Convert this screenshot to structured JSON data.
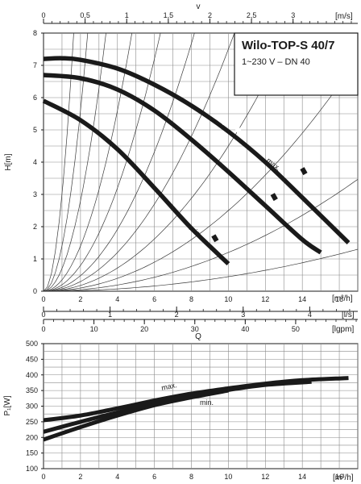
{
  "chart_data": [
    {
      "type": "line",
      "title": "Wilo-TOP-S 40/7",
      "subtitle": "1~230 V – DN 40",
      "ylabel": "H[m]",
      "xlabel": "[m³/h]",
      "xlim": [
        0,
        17
      ],
      "ylim": [
        0,
        8
      ],
      "x_ticks": [
        "0",
        "2",
        "4",
        "6",
        "8",
        "10",
        "12",
        "14",
        "16"
      ],
      "y_ticks": [
        "0",
        "1",
        "2",
        "3",
        "4",
        "5",
        "6",
        "7",
        "8"
      ],
      "secondary_axes": {
        "top": {
          "label": "v",
          "unit": "[m/s]",
          "ticks": [
            "0",
            "0,5",
            "1",
            "1,5",
            "2",
            "2,5",
            "3"
          ],
          "values": [
            0,
            0.5,
            1,
            1.5,
            2,
            2.5,
            3
          ],
          "m3h_per_unit": 4.5
        },
        "ls": {
          "unit": "[l/s]",
          "ticks": [
            "0",
            "1",
            "2",
            "3",
            "4"
          ],
          "values": [
            0,
            1,
            2,
            3,
            4
          ],
          "m3h_per_unit": 3.6
        },
        "lgpm": {
          "label": "Q",
          "unit": "[lgpm]",
          "ticks": [
            "0",
            "10",
            "20",
            "30",
            "40",
            "50"
          ],
          "values": [
            0,
            10,
            20,
            30,
            40,
            50
          ],
          "m3h_per_unit": 0.2728
        }
      },
      "series": [
        {
          "name": "max.",
          "x": [
            0,
            1,
            2,
            4,
            6,
            8,
            10,
            12,
            14,
            16.5
          ],
          "y": [
            7.2,
            7.22,
            7.17,
            6.9,
            6.4,
            5.75,
            4.95,
            4.0,
            2.9,
            1.5
          ]
        },
        {
          "name": "",
          "x": [
            0,
            2,
            4,
            6,
            8,
            10,
            12,
            14,
            15
          ],
          "y": [
            6.7,
            6.6,
            6.25,
            5.6,
            4.7,
            3.7,
            2.65,
            1.6,
            1.2
          ]
        },
        {
          "name": "min.",
          "x": [
            0,
            2,
            4,
            6,
            8,
            10
          ],
          "y": [
            5.9,
            5.3,
            4.4,
            3.2,
            1.95,
            0.85
          ]
        }
      ],
      "labels": [
        "max.",
        "min."
      ]
    },
    {
      "type": "line",
      "ylabel": "P₁[W]",
      "xlabel": "[m³/h]",
      "xlim": [
        0,
        17
      ],
      "ylim": [
        100,
        500
      ],
      "x_ticks": [
        "0",
        "2",
        "4",
        "6",
        "8",
        "10",
        "12",
        "14",
        "16"
      ],
      "y_ticks": [
        "100",
        "150",
        "200",
        "250",
        "300",
        "350",
        "400",
        "450",
        "500"
      ],
      "series": [
        {
          "name": "max.",
          "x": [
            0,
            2,
            4,
            6,
            8,
            10,
            12,
            14,
            16.5
          ],
          "y": [
            255,
            270,
            293,
            318,
            340,
            357,
            372,
            383,
            390
          ]
        },
        {
          "name": "",
          "x": [
            0,
            2,
            4,
            6,
            8,
            10,
            12,
            14.5
          ],
          "y": [
            218,
            250,
            280,
            308,
            333,
            352,
            368,
            378
          ]
        },
        {
          "name": "min.",
          "x": [
            0,
            2,
            4,
            6,
            8,
            10
          ],
          "y": [
            193,
            233,
            270,
            303,
            328,
            350
          ]
        }
      ],
      "labels": [
        "max.",
        "min."
      ]
    }
  ]
}
